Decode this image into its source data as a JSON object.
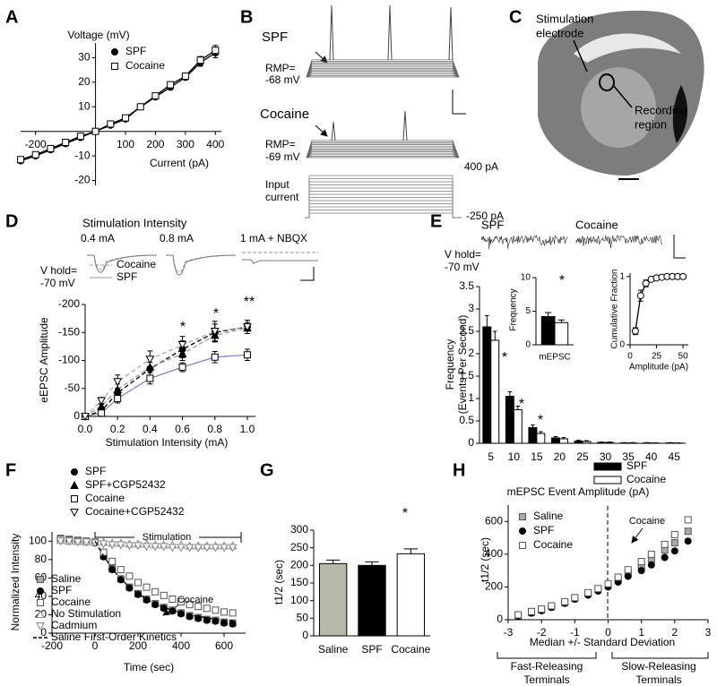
{
  "panel_letters": [
    "A",
    "B",
    "C",
    "D",
    "E",
    "F",
    "G",
    "H"
  ],
  "panel_b": {
    "top_label": "SPF",
    "top_rmp": [
      "RMP=",
      "-68 mV"
    ],
    "bottom_label": "Cocaine",
    "bottom_rmp": [
      "RMP=",
      "-69 mV"
    ],
    "current_max": "400 pA",
    "current_label": [
      "Input",
      "current"
    ],
    "current_min": "-250 pA"
  },
  "panel_c": {
    "electrode": [
      "Stimulation",
      "electrode"
    ],
    "recording": [
      "Recording",
      "region"
    ]
  },
  "panel_d_traces": {
    "title": "Stimulation Intensity",
    "intensities": [
      "0.4 mA",
      "0.8 mA",
      "1 mA + NBQX"
    ],
    "hold": [
      "V hold=",
      "-70 mV"
    ],
    "legend": [
      "Cocaine",
      "SPF"
    ]
  },
  "panel_e_traces": {
    "groups": [
      "SPF",
      "Cocaine"
    ],
    "hold": [
      "V hold=",
      "-70 mV"
    ]
  },
  "chart_data": [
    {
      "type": "line",
      "axes": "origin",
      "xlabel": "Current (pA)",
      "ylabel": "Voltage (mV)",
      "xlim": [
        -250,
        420
      ],
      "ylim": [
        -22,
        36
      ],
      "xticks": [
        -200,
        100,
        200,
        300,
        400
      ],
      "yticks": [
        -20,
        -10,
        10,
        20,
        30
      ],
      "legend": true,
      "x": [
        -250,
        -200,
        -150,
        -100,
        -50,
        0,
        50,
        100,
        150,
        200,
        250,
        300,
        350,
        400
      ],
      "series": [
        {
          "name": "SPF",
          "color": "#000000",
          "fill": "#000000",
          "marker": "circle",
          "line": "solid",
          "values": [
            -12,
            -10,
            -7.5,
            -5,
            -2.5,
            0,
            2.5,
            5,
            10,
            14,
            18,
            22,
            28,
            32
          ],
          "errors": [
            0.5,
            0.5,
            0.5,
            0.5,
            0.5,
            0,
            0.5,
            0.5,
            0.5,
            0.8,
            1,
            1,
            1.5,
            2
          ]
        },
        {
          "name": "Cocaine",
          "color": "#000000",
          "fill": "#ffffff",
          "marker": "square",
          "line": "solid",
          "values": [
            -11.5,
            -9.5,
            -7,
            -4.5,
            -2,
            0,
            3,
            5.5,
            10,
            14.5,
            19,
            22.5,
            29,
            33
          ],
          "errors": [
            0.5,
            0.5,
            0.5,
            0.5,
            0.5,
            0,
            0.5,
            0.5,
            0.5,
            0.8,
            1,
            1,
            1.5,
            2
          ]
        }
      ]
    },
    {
      "type": "line",
      "xlabel": "Stimulation Intensity (mA)",
      "ylabel": "eEPSC Amplitude",
      "xlim": [
        0,
        1.05
      ],
      "ylim": [
        0,
        -200
      ],
      "xticks": [
        {
          "value": 0,
          "label": "0.0"
        },
        0.2,
        0.4,
        0.6,
        0.8,
        {
          "value": 1,
          "label": "1.0"
        }
      ],
      "yticks": [
        0,
        -50,
        -100,
        -150,
        -200
      ],
      "legend": true,
      "annotations": [
        "*",
        "*",
        "**"
      ],
      "x": [
        0,
        0.1,
        0.2,
        0.4,
        0.6,
        0.8,
        1
      ],
      "series": [
        {
          "name": "SPF",
          "color": "#000000",
          "fill": "#000000",
          "marker": "circle",
          "line": "dashed",
          "line_color": "#000000",
          "values": [
            0,
            -10,
            -42,
            -85,
            -120,
            -150,
            -160
          ],
          "errors": [
            0,
            4,
            8,
            12,
            15,
            15,
            12
          ]
        },
        {
          "name": "SPF+CGP52432",
          "color": "#000000",
          "fill": "#000000",
          "marker": "triangle",
          "line": "dashed",
          "line_color": "#999999",
          "values": [
            0,
            -18,
            -48,
            -88,
            -112,
            -145,
            -158
          ],
          "errors": [
            0,
            5,
            10,
            15,
            12,
            12,
            10
          ]
        },
        {
          "name": "Cocaine",
          "color": "#000000",
          "fill": "#ffffff",
          "marker": "square",
          "line": "solid",
          "line_color": "#8a80c0",
          "values": [
            0,
            -6,
            -32,
            -68,
            -88,
            -106,
            -110
          ],
          "errors": [
            0,
            4,
            8,
            10,
            8,
            10,
            10
          ]
        },
        {
          "name": "Cocaine+CGP52432",
          "color": "#000000",
          "fill": "#ffffff",
          "marker": "triangle-down",
          "line": "dashed",
          "line_color": "#aaaaaa",
          "values": [
            0,
            -28,
            -62,
            -102,
            -128,
            -152,
            -160
          ],
          "errors": [
            0,
            6,
            12,
            15,
            15,
            18,
            12
          ]
        }
      ]
    },
    {
      "type": "bar",
      "xlabel": "mEPSC Event Amplitude (pA)",
      "ylabel": [
        "Frequency",
        "(Events Per Second)"
      ],
      "ylim": [
        0,
        3.5
      ],
      "yticks": [
        0,
        0.5,
        1,
        1.5,
        2,
        2.5,
        3,
        3.5
      ],
      "legend": true,
      "annotations": [
        "*",
        "*",
        "*"
      ],
      "categories": [
        "5",
        "10",
        "15",
        "20",
        "25",
        "30",
        "35",
        "40",
        "45"
      ],
      "series": [
        {
          "name": "SPF",
          "color": "#000000",
          "fill": "#000000",
          "values": [
            2.6,
            1.05,
            0.35,
            0.12,
            0.05,
            0.02,
            0.01,
            0.01,
            0.01
          ],
          "errors": [
            0.25,
            0.1,
            0.06,
            0.03,
            0.02,
            0.01,
            0.005,
            0.005,
            0.005
          ]
        },
        {
          "name": "Cocaine",
          "color": "#000000",
          "fill": "#ffffff",
          "values": [
            2.3,
            0.75,
            0.22,
            0.1,
            0.04,
            0.02,
            0.01,
            0.005,
            0.005
          ],
          "errors": [
            0.2,
            0.08,
            0.04,
            0.03,
            0.02,
            0.01,
            0.005,
            0.005,
            0.005
          ]
        }
      ]
    },
    {
      "type": "bar",
      "ylabel": "Frequency",
      "ylim": [
        0,
        10
      ],
      "yticks": [
        0,
        5,
        10
      ],
      "annotations": [
        "*"
      ],
      "categories": [
        "mEPSC"
      ],
      "series": [
        {
          "color": "#000000",
          "fill": "#000000",
          "values": [
            4.2
          ],
          "errors": [
            0.6
          ]
        },
        {
          "color": "#000000",
          "fill": "#ffffff",
          "values": [
            3.3
          ],
          "errors": [
            0.4
          ]
        }
      ]
    },
    {
      "type": "line",
      "xlabel": "Amplitude (pA)",
      "ylabel": "Cumulative Fraction",
      "xlim": [
        0,
        55
      ],
      "ylim": [
        0,
        1.05
      ],
      "xticks": [
        0,
        25,
        50
      ],
      "yticks": [
        0,
        1
      ],
      "x": [
        5,
        10,
        15,
        20,
        25,
        30,
        35,
        40,
        45,
        50
      ],
      "series": [
        {
          "color": "#000000",
          "fill": "#ffffff",
          "marker": "circle",
          "line": "solid",
          "values": [
            0.2,
            0.72,
            0.9,
            0.96,
            0.98,
            0.99,
            1,
            1,
            1,
            1
          ],
          "errors": [
            0.05,
            0.08,
            0.05,
            0.02,
            0.01,
            0,
            0,
            0,
            0,
            0
          ]
        }
      ]
    },
    {
      "type": "line",
      "xlabel": "Time (sec)",
      "ylabel": "Normalized Intensity",
      "xlim": [
        -200,
        700
      ],
      "ylim": [
        0,
        110
      ],
      "xticks": [
        -200,
        0,
        200,
        400,
        600
      ],
      "yticks": [
        0,
        20,
        40,
        60,
        80,
        100
      ],
      "legend": true,
      "annotations": [
        "Stimulation",
        "Cocaine"
      ],
      "x": [
        -160,
        -120,
        -80,
        -40,
        0,
        40,
        80,
        120,
        160,
        200,
        240,
        280,
        320,
        360,
        400,
        440,
        480,
        520,
        560,
        600,
        640
      ],
      "series": [
        {
          "name": "Saline",
          "color": "#555555",
          "fill": "#aaaaaa",
          "marker": "square",
          "line": "none",
          "values": [
            103,
            102,
            101,
            100,
            99,
            84,
            70,
            59,
            50,
            43,
            37,
            32,
            28,
            25,
            22,
            19,
            17,
            15,
            14,
            12,
            11
          ]
        },
        {
          "name": "SPF",
          "color": "#000000",
          "fill": "#000000",
          "marker": "circle",
          "line": "none",
          "values": [
            102,
            101,
            100,
            100,
            98,
            83,
            69,
            58,
            49,
            42,
            36,
            31,
            27,
            24,
            21,
            18,
            16,
            14,
            13,
            11,
            10
          ]
        },
        {
          "name": "Cocaine",
          "color": "#555555",
          "fill": "#ffffff",
          "marker": "square",
          "line": "none",
          "values": [
            102,
            101,
            100,
            100,
            99,
            88,
            78,
            69,
            62,
            55,
            50,
            45,
            41,
            37,
            34,
            31,
            29,
            27,
            25,
            23,
            22
          ]
        },
        {
          "name": "No Stimulation",
          "color": "#888888",
          "fill": "#ffffff",
          "marker": "triangle",
          "line": "none",
          "values": [
            101,
            100,
            100,
            99,
            99,
            99,
            98,
            98,
            97,
            97,
            97,
            96,
            96,
            96,
            96,
            95,
            95,
            95,
            95,
            95,
            95
          ]
        },
        {
          "name": "Cadmium",
          "color": "#888888",
          "fill": "#ffffff",
          "marker": "triangle-down",
          "line": "none",
          "values": [
            100,
            100,
            99,
            99,
            98,
            97,
            96,
            96,
            95,
            95,
            94,
            94,
            94,
            93,
            93,
            93,
            93,
            93,
            93,
            93,
            93
          ]
        },
        {
          "name": "Saline First-Order Kinetics",
          "color": "#000000",
          "marker": "none",
          "line": "dashed",
          "values": [
            null,
            null,
            null,
            null,
            100,
            84,
            70,
            59,
            50,
            43,
            37,
            32,
            28,
            25,
            22,
            20,
            18,
            17,
            15,
            14,
            14
          ]
        }
      ]
    },
    {
      "type": "bar",
      "ylabel": "t1/2 (sec)",
      "ylim": [
        0,
        300
      ],
      "yticks": [
        0,
        50,
        100,
        150,
        200,
        250,
        300
      ],
      "annotations": [
        "*"
      ],
      "categories": [
        "Saline",
        "SPF",
        "Cocaine"
      ],
      "series": [
        {
          "color": "#000000",
          "fills": [
            "#b8b8a8",
            "#000000",
            "#ffffff"
          ],
          "values": [
            205,
            200,
            233
          ],
          "errors": [
            10,
            10,
            14
          ]
        }
      ]
    },
    {
      "type": "scatter",
      "xlabel": "Median +/- Standard Deviation",
      "ylabel": "t1/2 (sec)",
      "xlim": [
        -3,
        3
      ],
      "ylim": [
        0,
        700
      ],
      "xticks": [
        -3,
        -2,
        -1,
        0,
        1,
        2,
        3
      ],
      "yticks": [
        0,
        200,
        400,
        600
      ],
      "legend": true,
      "annotations": [
        "Cocaine"
      ],
      "brackets": [
        [
          "Fast-Releasing",
          "Terminals"
        ],
        [
          "Slow-Releasing",
          "Terminals"
        ]
      ],
      "x": [
        -2.7,
        -2.3,
        -2,
        -1.7,
        -1.3,
        -1,
        -0.6,
        -0.3,
        0,
        0.3,
        0.6,
        1,
        1.3,
        1.7,
        2,
        2.4
      ],
      "series": [
        {
          "name": "Saline",
          "color": "#555555",
          "fill": "#aaaaaa",
          "marker": "square",
          "values": [
            25,
            45,
            60,
            80,
            105,
            130,
            160,
            185,
            210,
            245,
            285,
            330,
            370,
            425,
            470,
            540
          ]
        },
        {
          "name": "SPF",
          "color": "#000000",
          "fill": "#000000",
          "marker": "circle",
          "values": [
            22,
            40,
            55,
            75,
            100,
            125,
            150,
            175,
            200,
            230,
            265,
            300,
            335,
            380,
            420,
            480
          ]
        },
        {
          "name": "Cocaine",
          "color": "#555555",
          "fill": "#ffffff",
          "marker": "square",
          "values": [
            30,
            50,
            65,
            85,
            110,
            135,
            165,
            190,
            220,
            260,
            305,
            355,
            400,
            460,
            520,
            610
          ]
        }
      ]
    }
  ]
}
